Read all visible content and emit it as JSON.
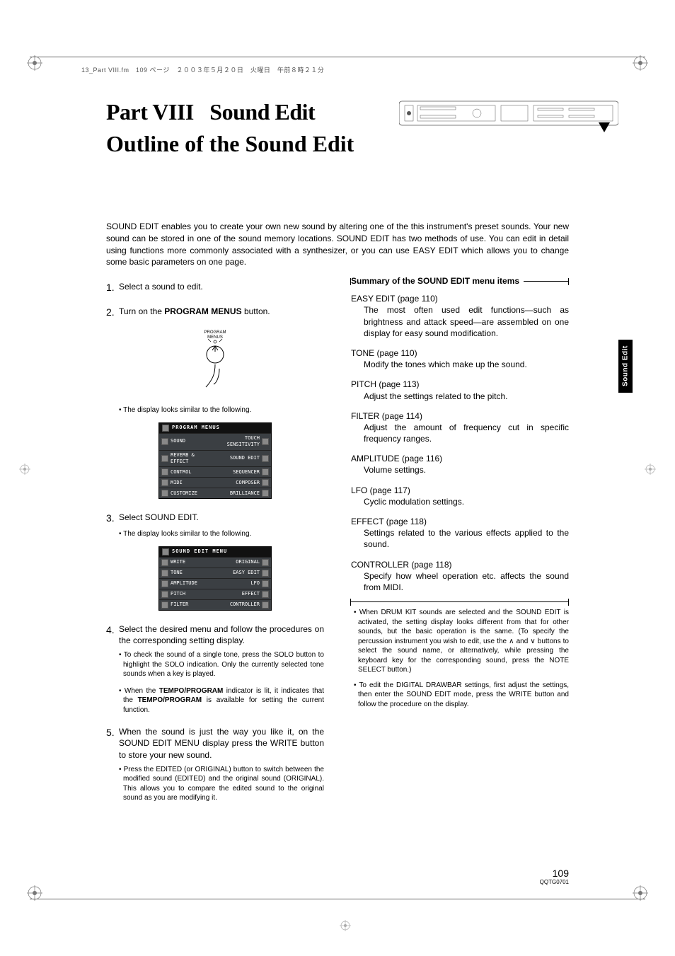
{
  "header_strip": "13_Part VIII.fm　109 ページ　２００３年５月２０日　火曜日　午前８時２１分",
  "title_part": "Part VIII",
  "title_main": "Sound Edit",
  "subtitle": "Outline of the Sound Edit",
  "intro": "SOUND EDIT enables you to create your own new sound by altering one of the this instrument's preset sounds. Your new sound can be stored in one of the sound memory locations. SOUND EDIT has two methods of use. You can edit in detail using functions more commonly associated with a synthesizer, or you can use EASY EDIT which allows you to change some basic parameters on one page.",
  "side_tab": "Sound Edit",
  "left": {
    "s1": {
      "n": "1.",
      "t": "Select a sound to edit."
    },
    "s2": {
      "n": "2.",
      "t_pre": "Turn on the ",
      "t_bold": "PROGRAM MENUS",
      "t_post": " button."
    },
    "btn_label": "PROGRAM\nMENUS",
    "note_a": "The display looks similar to the following.",
    "lcd1_title": "PROGRAM MENUS",
    "lcd1_rows": [
      {
        "l": "SOUND",
        "r": "TOUCH\nSENSITIVITY"
      },
      {
        "l": "REVERB &\nEFFECT",
        "r": "SOUND EDIT"
      },
      {
        "l": "CONTROL",
        "r": "SEQUENCER"
      },
      {
        "l": "MIDI",
        "r": "COMPOSER"
      },
      {
        "l": "CUSTOMIZE",
        "r": "BRILLIANCE"
      }
    ],
    "s3": {
      "n": "3.",
      "t": "Select SOUND EDIT."
    },
    "note_b": "The display looks similar to the following.",
    "lcd2_title": "SOUND EDIT MENU",
    "lcd2_rows": [
      {
        "l": "WRITE",
        "r": "ORIGINAL"
      },
      {
        "l": "TONE",
        "r": "EASY EDIT"
      },
      {
        "l": "AMPLITUDE",
        "r": "LFO"
      },
      {
        "l": "PITCH",
        "r": "EFFECT"
      },
      {
        "l": "FILTER",
        "r": "CONTROLLER"
      }
    ],
    "s4": {
      "n": "4.",
      "t": "Select the desired menu and follow the procedures on the corresponding setting display."
    },
    "note_c": "To check the sound of a single tone, press the SOLO button to highlight the SOLO indication. Only the currently selected tone sounds when a key is played.",
    "note_d_pre": "When the ",
    "note_d_b1": "TEMPO/PROGRAM",
    "note_d_mid": " indicator is lit, it indicates that the ",
    "note_d_b2": "TEMPO/PROGRAM",
    "note_d_post": " is available for setting the current function.",
    "s5": {
      "n": "5.",
      "t": "When the sound is just the way you like it, on the SOUND EDIT MENU display press the WRITE button to store your new sound."
    },
    "note_e": "Press the EDITED (or ORIGINAL) button to switch between the modified sound (EDITED) and the original sound (ORIGINAL). This allows you to compare the edited sound to the original sound as you are modifying it."
  },
  "right": {
    "summary_title": "Summary of the SOUND EDIT menu items",
    "items": [
      {
        "h": "EASY EDIT (page 110)",
        "d": "The most often used edit functions—such as brightness and attack speed—are assembled on one display for easy sound modification."
      },
      {
        "h": "TONE (page 110)",
        "d": "Modify the tones which make up the sound."
      },
      {
        "h": "PITCH (page 113)",
        "d": "Adjust the settings related to the pitch."
      },
      {
        "h": "FILTER (page 114)",
        "d": "Adjust the amount of frequency cut in specific frequency ranges."
      },
      {
        "h": "AMPLITUDE (page 116)",
        "d": "Volume settings."
      },
      {
        "h": "LFO (page 117)",
        "d": "Cyclic modulation settings."
      },
      {
        "h": "EFFECT (page 118)",
        "d": "Settings related to the various effects applied to the sound."
      },
      {
        "h": "CONTROLLER (page 118)",
        "d": "Specify how wheel operation etc. affects the sound from MIDI."
      }
    ],
    "fine1": "When DRUM KIT sounds are selected and the SOUND EDIT is activated, the setting display looks different from that for other sounds, but the basic operation is the same. (To specify the percussion instrument you wish to edit, use the ∧ and ∨ buttons to select the sound name, or alternatively, while pressing the keyboard key for the corresponding sound, press the NOTE SELECT button.)",
    "fine2": "To edit the DIGITAL DRAWBAR settings, first adjust the settings, then enter the SOUND EDIT mode, press the WRITE button and follow the procedure on the display."
  },
  "page_number": "109",
  "doc_code": "QQTG0701",
  "colors": {
    "text": "#000000",
    "lcd_bg": "#3b3f43",
    "side_tab_bg": "#000000"
  }
}
